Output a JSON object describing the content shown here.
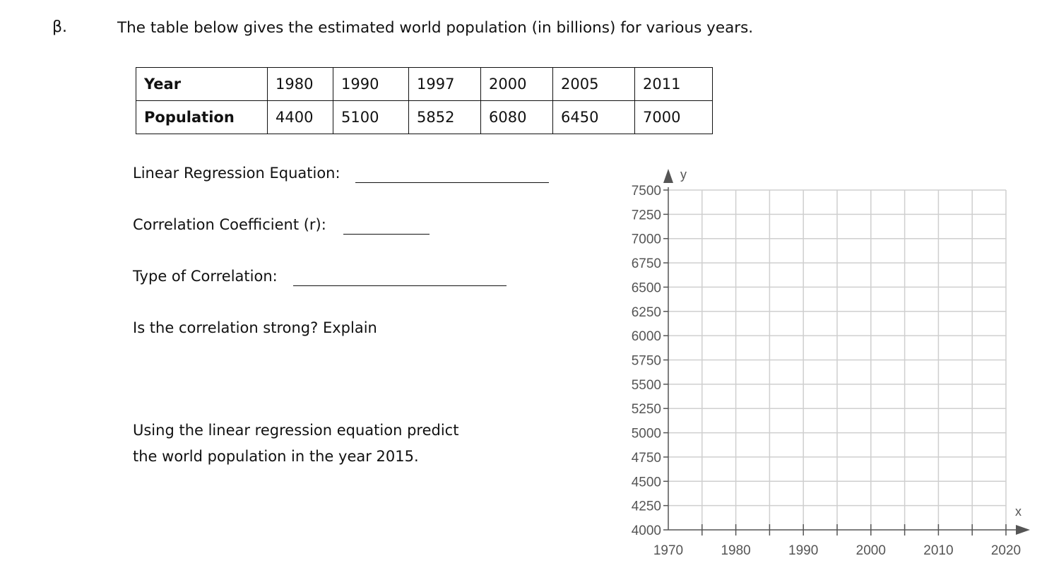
{
  "question": {
    "number": "β.",
    "prompt": "The table below gives the estimated world population (in billions) for various years."
  },
  "table": {
    "year_header": "Year",
    "population_header": "Population",
    "years": [
      "1980",
      "1990",
      "1997",
      "2000",
      "2005",
      "2011"
    ],
    "populations": [
      "4400",
      "5100",
      "5852",
      "6080",
      "6450",
      "7000"
    ]
  },
  "prompts": {
    "regression": "Linear Regression Equation:",
    "correlation_coefficient": "Correlation Coefficient (r):",
    "correlation_type": "Type of Correlation:",
    "strong": "Is the correlation strong? Explain",
    "predict_line1": "Using the linear regression equation predict",
    "predict_line2": "the world population in the year 2015."
  },
  "chart_data": {
    "type": "scatter",
    "title": "",
    "xlabel": "x",
    "ylabel": "y",
    "xlim": [
      1970,
      2020
    ],
    "ylim": [
      4000,
      7500
    ],
    "x_ticks": [
      1970,
      1980,
      1990,
      2000,
      2010,
      2020
    ],
    "y_ticks": [
      4000,
      4250,
      4500,
      4750,
      5000,
      5250,
      5500,
      5750,
      6000,
      6250,
      6500,
      6750,
      7000,
      7250,
      7500
    ],
    "x_minor_step": 5,
    "grid": true,
    "series": [
      {
        "x": [],
        "y": []
      }
    ],
    "colors": {
      "grid": "#cfcfcf",
      "axis": "#555555"
    }
  }
}
